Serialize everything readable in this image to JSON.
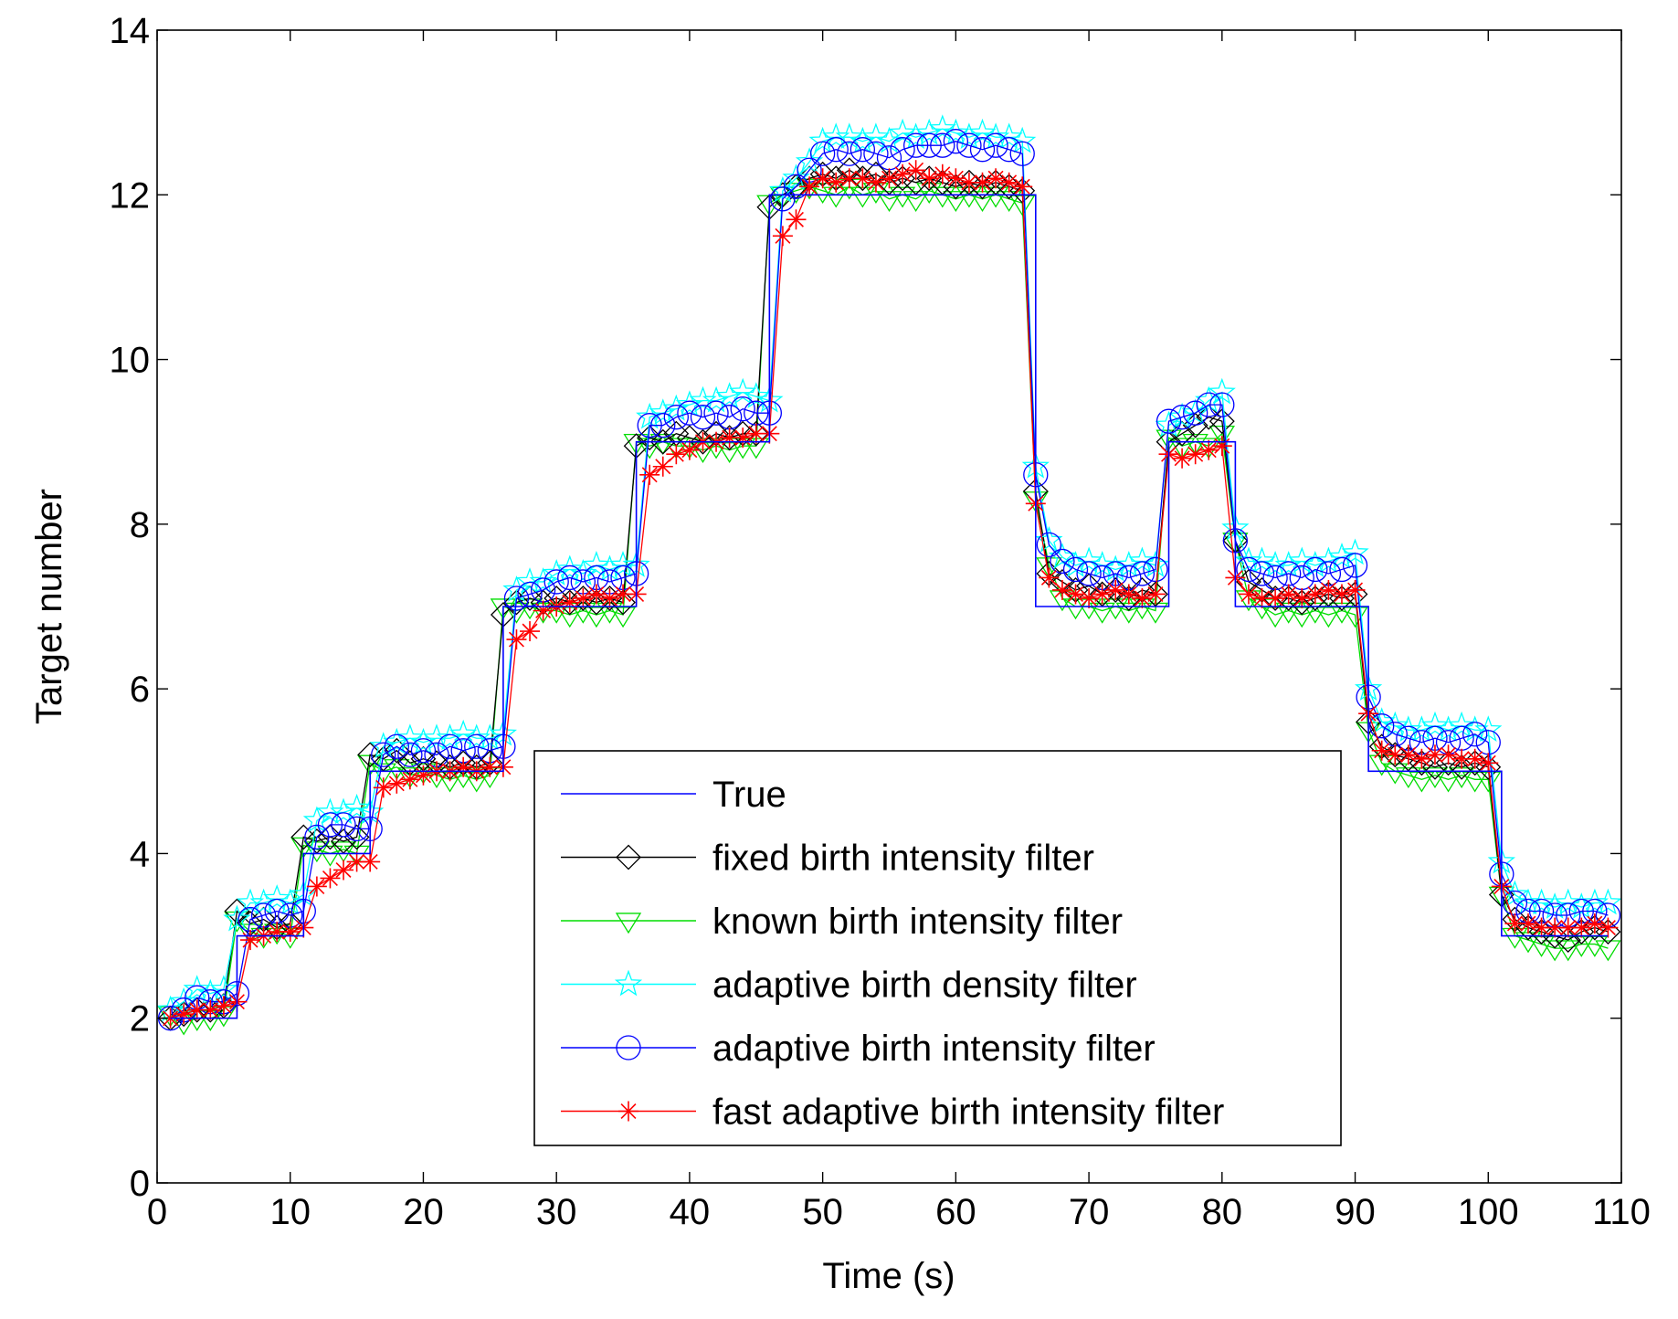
{
  "chart_data": {
    "type": "line",
    "title": "",
    "xlabel": "Time (s)",
    "ylabel": "Target number",
    "xlim": [
      0,
      110
    ],
    "ylim": [
      0,
      14
    ],
    "xticks": [
      0,
      10,
      20,
      30,
      40,
      50,
      60,
      70,
      80,
      90,
      100,
      110
    ],
    "yticks": [
      0,
      2,
      4,
      6,
      8,
      10,
      12,
      14
    ],
    "grid": false,
    "legend_position": "bottom-center",
    "x": [
      1,
      2,
      3,
      4,
      5,
      6,
      7,
      8,
      9,
      10,
      11,
      12,
      13,
      14,
      15,
      16,
      17,
      18,
      19,
      20,
      21,
      22,
      23,
      24,
      25,
      26,
      27,
      28,
      29,
      30,
      31,
      32,
      33,
      34,
      35,
      36,
      37,
      38,
      39,
      40,
      41,
      42,
      43,
      44,
      45,
      46,
      47,
      48,
      49,
      50,
      51,
      52,
      53,
      54,
      55,
      56,
      57,
      58,
      59,
      60,
      61,
      62,
      63,
      64,
      65,
      66,
      67,
      68,
      69,
      70,
      71,
      72,
      73,
      74,
      75,
      76,
      77,
      78,
      79,
      80,
      81,
      82,
      83,
      84,
      85,
      86,
      87,
      88,
      89,
      90,
      91,
      92,
      93,
      94,
      95,
      96,
      97,
      98,
      99,
      100,
      101,
      102,
      103,
      104,
      105,
      106,
      107,
      108,
      109
    ],
    "series": [
      {
        "name": "True",
        "color": "#0000ff",
        "marker": "none",
        "values": [
          2,
          2,
          2,
          2,
          2,
          3,
          3,
          3,
          3,
          3,
          4,
          4,
          4,
          4,
          4,
          5,
          5,
          5,
          5,
          5,
          5,
          5,
          5,
          5,
          5,
          7,
          7,
          7,
          7,
          7,
          7,
          7,
          7,
          7,
          7,
          9,
          9,
          9,
          9,
          9,
          9,
          9,
          9,
          9,
          9,
          12,
          12,
          12,
          12,
          12,
          12,
          12,
          12,
          12,
          12,
          12,
          12,
          12,
          12,
          12,
          12,
          12,
          12,
          12,
          12,
          7,
          7,
          7,
          7,
          7,
          7,
          7,
          7,
          7,
          7,
          9,
          9,
          9,
          9,
          9,
          7,
          7,
          7,
          7,
          7,
          7,
          7,
          7,
          7,
          7,
          5,
          5,
          5,
          5,
          5,
          5,
          5,
          5,
          5,
          5,
          3,
          3,
          3,
          3,
          3,
          3,
          3,
          3,
          3
        ]
      },
      {
        "name": "fixed birth intensity filter",
        "color": "#000000",
        "marker": "diamond",
        "values": [
          2.0,
          2.05,
          2.1,
          2.1,
          2.15,
          3.3,
          3.15,
          3.2,
          3.1,
          3.15,
          4.2,
          4.15,
          4.2,
          4.15,
          4.2,
          5.2,
          5.15,
          5.25,
          5.1,
          5.15,
          5.1,
          5.05,
          5.1,
          5.05,
          5.1,
          6.9,
          7.05,
          7.1,
          7.05,
          7.1,
          7.05,
          7.1,
          7.05,
          7.1,
          7.05,
          8.95,
          9.05,
          9.0,
          9.1,
          9.05,
          9.0,
          9.1,
          9.05,
          9.1,
          9.1,
          11.85,
          12.0,
          12.1,
          12.2,
          12.25,
          12.2,
          12.3,
          12.2,
          12.25,
          12.15,
          12.2,
          12.15,
          12.2,
          12.15,
          12.1,
          12.15,
          12.1,
          12.15,
          12.1,
          12.05,
          8.4,
          7.4,
          7.3,
          7.2,
          7.25,
          7.15,
          7.2,
          7.1,
          7.2,
          7.15,
          9.0,
          9.1,
          9.2,
          9.3,
          9.25,
          7.8,
          7.3,
          7.2,
          7.1,
          7.1,
          7.05,
          7.1,
          7.15,
          7.1,
          7.15,
          5.6,
          5.3,
          5.2,
          5.15,
          5.1,
          5.05,
          5.1,
          5.05,
          5.1,
          5.05,
          3.5,
          3.2,
          3.1,
          3.05,
          3.0,
          2.95,
          3.05,
          3.1,
          3.05
        ]
      },
      {
        "name": "known birth intensity filter",
        "color": "#00dd00",
        "marker": "triangle-down",
        "values": [
          2.05,
          1.95,
          2.0,
          2.0,
          2.05,
          3.2,
          3.05,
          3.0,
          3.05,
          3.0,
          4.1,
          4.05,
          4.0,
          4.05,
          4.0,
          5.1,
          5.0,
          5.05,
          4.95,
          5.0,
          4.95,
          4.9,
          4.95,
          4.9,
          4.95,
          7.0,
          6.95,
          7.0,
          6.95,
          6.95,
          6.9,
          6.95,
          6.9,
          6.95,
          6.9,
          9.0,
          8.95,
          9.0,
          8.95,
          8.95,
          8.9,
          8.95,
          8.9,
          8.95,
          8.95,
          11.9,
          12.0,
          12.05,
          12.1,
          12.05,
          12.0,
          12.1,
          12.0,
          12.05,
          11.95,
          12.0,
          11.95,
          12.05,
          12.0,
          11.95,
          12.0,
          11.95,
          12.0,
          11.95,
          11.9,
          8.3,
          7.5,
          7.1,
          7.0,
          7.0,
          6.95,
          7.0,
          6.95,
          7.0,
          6.95,
          9.05,
          8.95,
          9.0,
          8.95,
          9.1,
          7.8,
          7.1,
          7.0,
          6.9,
          6.95,
          6.9,
          6.95,
          6.9,
          6.95,
          6.9,
          5.5,
          5.1,
          5.0,
          4.95,
          4.9,
          4.95,
          4.9,
          4.95,
          4.9,
          4.9,
          3.5,
          3.0,
          2.95,
          2.9,
          2.85,
          2.85,
          2.9,
          2.9,
          2.85
        ]
      },
      {
        "name": "adaptive birth density filter",
        "color": "#00ffff",
        "marker": "pentagram",
        "values": [
          2.1,
          2.2,
          2.35,
          2.3,
          2.35,
          3.2,
          3.4,
          3.4,
          3.45,
          3.4,
          3.5,
          4.4,
          4.5,
          4.5,
          4.55,
          4.5,
          5.3,
          5.35,
          5.4,
          5.35,
          5.4,
          5.4,
          5.45,
          5.4,
          5.4,
          5.45,
          7.2,
          7.3,
          7.3,
          7.4,
          7.45,
          7.4,
          7.5,
          7.45,
          7.5,
          7.5,
          9.3,
          9.35,
          9.4,
          9.45,
          9.5,
          9.5,
          9.55,
          9.6,
          9.55,
          9.5,
          12.05,
          12.2,
          12.4,
          12.65,
          12.7,
          12.7,
          12.65,
          12.7,
          12.65,
          12.75,
          12.7,
          12.75,
          12.8,
          12.75,
          12.7,
          12.75,
          12.7,
          12.7,
          12.65,
          8.7,
          7.8,
          7.6,
          7.5,
          7.55,
          7.5,
          7.45,
          7.5,
          7.55,
          7.5,
          9.2,
          9.3,
          9.35,
          9.5,
          9.6,
          7.95,
          7.55,
          7.55,
          7.5,
          7.5,
          7.55,
          7.5,
          7.55,
          7.6,
          7.65,
          6.0,
          5.6,
          5.55,
          5.5,
          5.5,
          5.55,
          5.5,
          5.55,
          5.5,
          5.5,
          3.9,
          3.5,
          3.4,
          3.4,
          3.35,
          3.4,
          3.35,
          3.4,
          3.4
        ]
      },
      {
        "name": "adaptive birth intensity filter",
        "color": "#0000ff",
        "marker": "circle",
        "values": [
          2.0,
          2.1,
          2.25,
          2.2,
          2.2,
          2.3,
          3.2,
          3.25,
          3.3,
          3.25,
          3.3,
          4.2,
          4.35,
          4.35,
          4.3,
          4.3,
          5.2,
          5.3,
          5.2,
          5.25,
          5.2,
          5.3,
          5.25,
          5.3,
          5.25,
          5.3,
          7.1,
          7.15,
          7.2,
          7.3,
          7.35,
          7.3,
          7.35,
          7.3,
          7.35,
          7.4,
          9.2,
          9.2,
          9.3,
          9.35,
          9.3,
          9.35,
          9.3,
          9.4,
          9.35,
          9.35,
          11.95,
          12.1,
          12.3,
          12.5,
          12.55,
          12.5,
          12.55,
          12.5,
          12.45,
          12.55,
          12.6,
          12.6,
          12.6,
          12.65,
          12.6,
          12.55,
          12.6,
          12.55,
          12.5,
          8.6,
          7.75,
          7.55,
          7.45,
          7.4,
          7.35,
          7.4,
          7.35,
          7.4,
          7.45,
          9.25,
          9.3,
          9.35,
          9.45,
          9.45,
          7.8,
          7.45,
          7.4,
          7.35,
          7.4,
          7.35,
          7.45,
          7.4,
          7.45,
          7.5,
          5.9,
          5.55,
          5.45,
          5.4,
          5.35,
          5.4,
          5.35,
          5.4,
          5.45,
          5.35,
          3.75,
          3.4,
          3.3,
          3.3,
          3.25,
          3.25,
          3.3,
          3.3,
          3.25
        ]
      },
      {
        "name": "fast adaptive birth intensity filter",
        "color": "#ff0000",
        "marker": "asterisk",
        "values": [
          2.0,
          2.05,
          2.1,
          2.1,
          2.15,
          2.2,
          2.95,
          3.0,
          3.05,
          3.05,
          3.1,
          3.6,
          3.7,
          3.8,
          3.9,
          3.9,
          4.8,
          4.85,
          4.9,
          4.95,
          5.0,
          5.0,
          5.05,
          5.0,
          5.05,
          5.05,
          6.6,
          6.7,
          6.95,
          7.0,
          7.05,
          7.1,
          7.15,
          7.1,
          7.15,
          7.15,
          8.6,
          8.7,
          8.85,
          8.9,
          9.0,
          9.0,
          9.05,
          9.05,
          9.1,
          9.1,
          11.5,
          11.7,
          12.1,
          12.2,
          12.15,
          12.2,
          12.2,
          12.15,
          12.2,
          12.25,
          12.3,
          12.2,
          12.25,
          12.2,
          12.15,
          12.15,
          12.2,
          12.15,
          12.1,
          8.25,
          7.35,
          7.2,
          7.15,
          7.1,
          7.15,
          7.2,
          7.15,
          7.1,
          7.15,
          8.85,
          8.8,
          8.85,
          8.9,
          8.95,
          7.35,
          7.15,
          7.1,
          7.1,
          7.15,
          7.1,
          7.15,
          7.2,
          7.15,
          7.2,
          5.7,
          5.25,
          5.2,
          5.2,
          5.15,
          5.2,
          5.2,
          5.15,
          5.15,
          5.1,
          3.6,
          3.15,
          3.15,
          3.1,
          3.1,
          3.1,
          3.1,
          3.15,
          3.1
        ]
      }
    ]
  }
}
